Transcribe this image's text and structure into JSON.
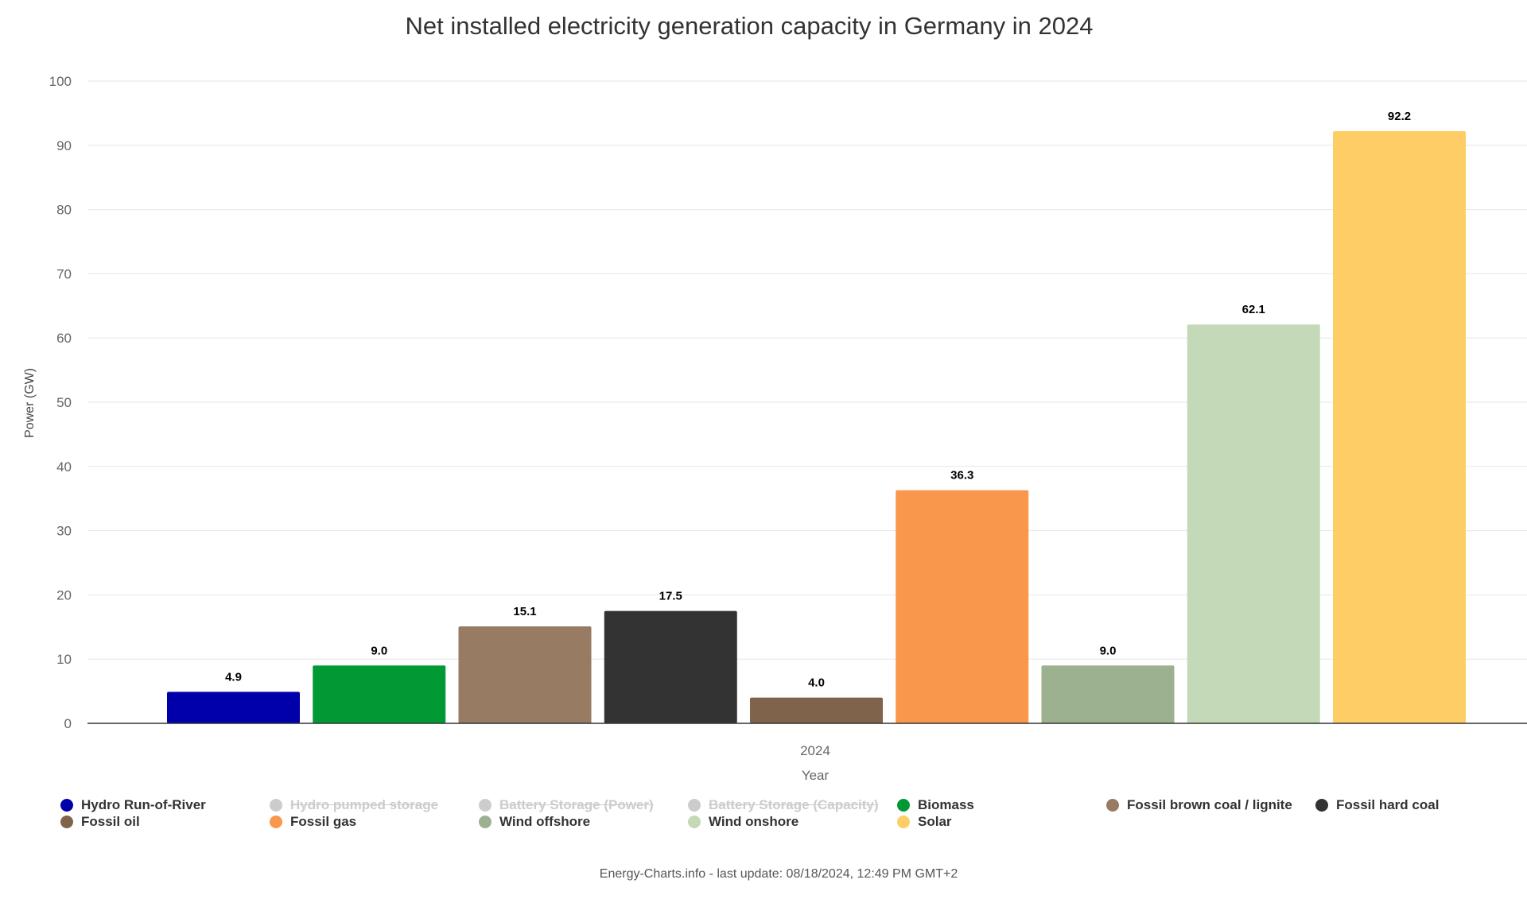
{
  "chart_data": {
    "type": "bar",
    "title": "Net installed electricity generation capacity in Germany in 2024",
    "xlabel": "Year",
    "ylabel": "Power (GW)",
    "categories": [
      "2024"
    ],
    "ylim": [
      0,
      100
    ],
    "yticks": [
      0,
      10,
      20,
      30,
      40,
      50,
      60,
      70,
      80,
      90,
      100
    ],
    "grid": true,
    "legend_position": "bottom",
    "series": [
      {
        "name": "Hydro Run-of-River",
        "values": [
          4.9
        ],
        "label": "4.9",
        "color": "#0000aa",
        "visible": true
      },
      {
        "name": "Hydro pumped storage",
        "values": [
          null
        ],
        "color": "#cccccc",
        "visible": false
      },
      {
        "name": "Battery Storage (Power)",
        "values": [
          null
        ],
        "color": "#cccccc",
        "visible": false
      },
      {
        "name": "Battery Storage (Capacity)",
        "values": [
          null
        ],
        "color": "#cccccc",
        "visible": false
      },
      {
        "name": "Biomass",
        "values": [
          9.0
        ],
        "label": "9.0",
        "color": "#009933",
        "visible": true
      },
      {
        "name": "Fossil brown coal / lignite",
        "values": [
          15.1
        ],
        "label": "15.1",
        "color": "#977b62",
        "visible": true
      },
      {
        "name": "Fossil hard coal",
        "values": [
          17.5
        ],
        "label": "17.5",
        "color": "#333333",
        "visible": true
      },
      {
        "name": "Fossil oil",
        "values": [
          4.0
        ],
        "label": "4.0",
        "color": "#7f634a",
        "visible": true
      },
      {
        "name": "Fossil gas",
        "values": [
          36.3
        ],
        "label": "36.3",
        "color": "#f9974c",
        "visible": true
      },
      {
        "name": "Wind offshore",
        "values": [
          9.0
        ],
        "label": "9.0",
        "color": "#9cb190",
        "visible": true
      },
      {
        "name": "Wind onshore",
        "values": [
          62.1
        ],
        "label": "62.1",
        "color": "#c4d9b8",
        "visible": true
      },
      {
        "name": "Solar",
        "values": [
          92.2
        ],
        "label": "92.2",
        "color": "#ffcd65",
        "visible": true
      }
    ]
  },
  "footer": {
    "credit": "Energy-Charts.info - last update: 08/18/2024, 12:49 PM GMT+2"
  }
}
